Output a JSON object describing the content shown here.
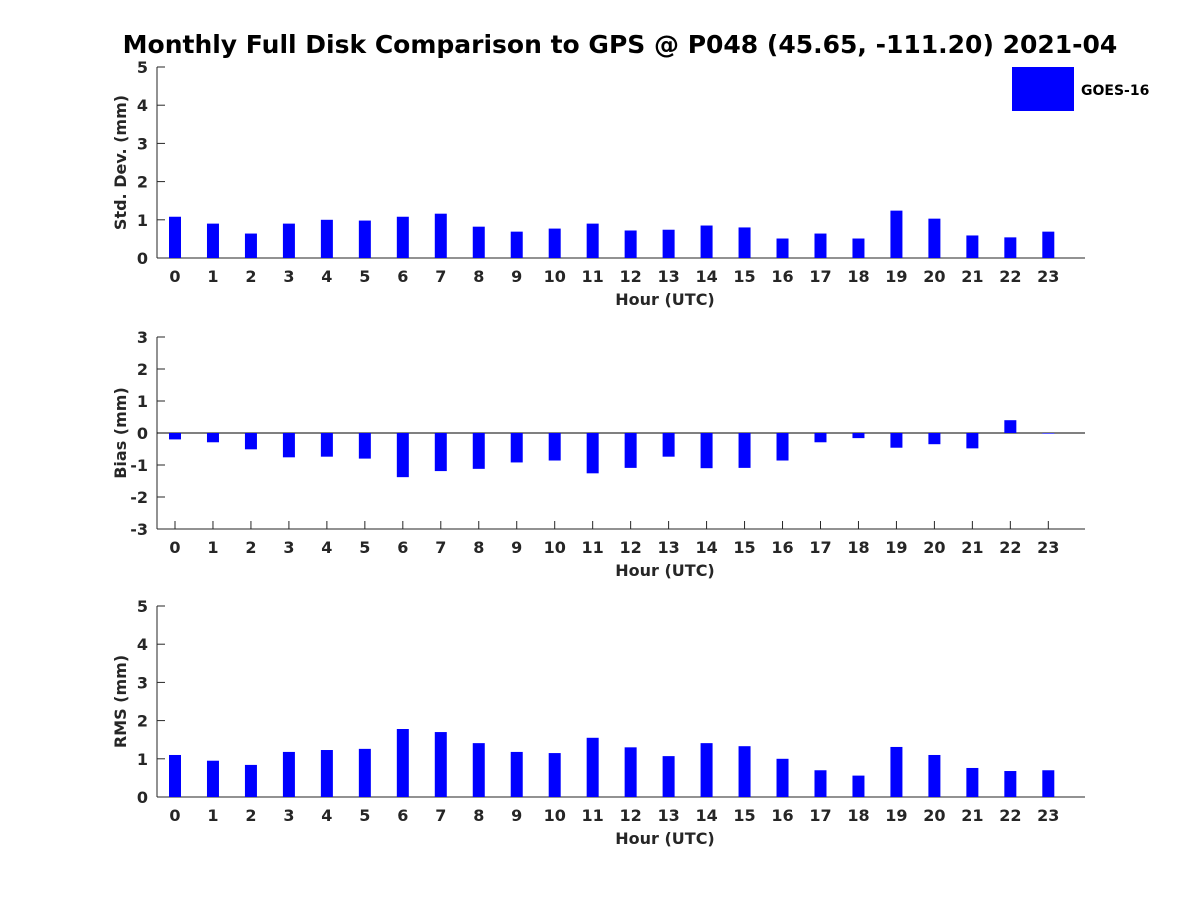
{
  "title": "Monthly Full Disk Comparison to GPS @ P048 (45.65, -111.20) 2021-04",
  "colors": {
    "bar": "#0000ff",
    "axis": "#262626"
  },
  "legend": {
    "label": "GOES-16",
    "placement": "top-right"
  },
  "chart_data": [
    {
      "type": "bar",
      "ylabel": "Std. Dev. (mm)",
      "xlabel": "Hour (UTC)",
      "ylim": [
        0,
        5
      ],
      "yticks": [
        0,
        1,
        2,
        3,
        4,
        5
      ],
      "categories": [
        "0",
        "1",
        "2",
        "3",
        "4",
        "5",
        "6",
        "7",
        "8",
        "9",
        "10",
        "11",
        "12",
        "13",
        "14",
        "15",
        "16",
        "17",
        "18",
        "19",
        "20",
        "21",
        "22",
        "23"
      ],
      "series": [
        {
          "name": "GOES-16",
          "values": [
            1.08,
            0.9,
            0.64,
            0.9,
            1.0,
            0.98,
            1.08,
            1.16,
            0.82,
            0.69,
            0.77,
            0.9,
            0.72,
            0.74,
            0.85,
            0.8,
            0.51,
            0.64,
            0.51,
            1.24,
            1.03,
            0.59,
            0.54,
            0.69
          ]
        }
      ]
    },
    {
      "type": "bar",
      "ylabel": "Bias (mm)",
      "xlabel": "Hour (UTC)",
      "ylim": [
        -3,
        3
      ],
      "yticks": [
        -3,
        -2,
        -1,
        0,
        1,
        2,
        3
      ],
      "categories": [
        "0",
        "1",
        "2",
        "3",
        "4",
        "5",
        "6",
        "7",
        "8",
        "9",
        "10",
        "11",
        "12",
        "13",
        "14",
        "15",
        "16",
        "17",
        "18",
        "19",
        "20",
        "21",
        "22",
        "23"
      ],
      "series": [
        {
          "name": "GOES-16",
          "values": [
            -0.2,
            -0.29,
            -0.51,
            -0.76,
            -0.74,
            -0.8,
            -1.38,
            -1.19,
            -1.12,
            -0.92,
            -0.86,
            -1.26,
            -1.09,
            -0.74,
            -1.1,
            -1.09,
            -0.86,
            -0.29,
            -0.16,
            -0.46,
            -0.35,
            -0.48,
            0.4,
            -0.02
          ]
        }
      ]
    },
    {
      "type": "bar",
      "ylabel": "RMS (mm)",
      "xlabel": "Hour (UTC)",
      "ylim": [
        0,
        5
      ],
      "yticks": [
        0,
        1,
        2,
        3,
        4,
        5
      ],
      "categories": [
        "0",
        "1",
        "2",
        "3",
        "4",
        "5",
        "6",
        "7",
        "8",
        "9",
        "10",
        "11",
        "12",
        "13",
        "14",
        "15",
        "16",
        "17",
        "18",
        "19",
        "20",
        "21",
        "22",
        "23"
      ],
      "series": [
        {
          "name": "GOES-16",
          "values": [
            1.1,
            0.95,
            0.84,
            1.18,
            1.23,
            1.26,
            1.78,
            1.7,
            1.41,
            1.18,
            1.15,
            1.55,
            1.3,
            1.07,
            1.41,
            1.33,
            1.0,
            0.7,
            0.56,
            1.31,
            1.1,
            0.76,
            0.68,
            0.7
          ]
        }
      ]
    }
  ]
}
